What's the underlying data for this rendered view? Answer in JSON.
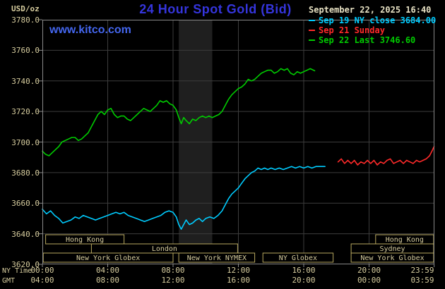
{
  "header": {
    "units_label": "USD/oz",
    "title": "24 Hour Spot Gold (Bid)",
    "datetime": "September 22, 2025 16:40",
    "watermark": "www.kitco.com"
  },
  "axes": {
    "ny_label": "NY Time",
    "gmt_label": "GMT"
  },
  "colors": {
    "background": "#000000",
    "title": "#3535dd",
    "watermark": "#4466ee",
    "datetime": "#e8e2c4",
    "axis_text": "#d6cc9e",
    "grid": "#3d3d3d",
    "border": "#8a8a8a",
    "band": "#1f1f1f",
    "session_border": "#b9a95f",
    "session_text": "#d6cc9e"
  },
  "legend": [
    {
      "id": "sep19",
      "label": "Sep 19 NY close 3684.00",
      "color": "#00ccff"
    },
    {
      "id": "sep21",
      "label": "Sep 21 Sunday",
      "color": "#ff2a2a"
    },
    {
      "id": "sep22",
      "label": "Sep 22 Last 3746.60",
      "color": "#00cc00"
    }
  ],
  "chart_data": {
    "type": "line",
    "title": "24 Hour Spot Gold (Bid)",
    "y_axis": {
      "unit": "USD/oz",
      "min": 3620,
      "max": 3780,
      "tick_step": 20,
      "tick_labels": [
        "3780.0",
        "3760.0",
        "3740.0",
        "3720.0",
        "3700.0",
        "3680.0",
        "3660.0",
        "3640.0",
        "3620.0"
      ]
    },
    "x_axis": {
      "range_hours": [
        0,
        24
      ],
      "ticks": [
        {
          "hour": 0,
          "ny": "00:00",
          "gmt": "04:00"
        },
        {
          "hour": 4,
          "ny": "04:00",
          "gmt": "08:00"
        },
        {
          "hour": 8,
          "ny": "08:00",
          "gmt": "12:00"
        },
        {
          "hour": 12,
          "ny": "12:00",
          "gmt": "16:00"
        },
        {
          "hour": 16,
          "ny": "16:00",
          "gmt": "20:00"
        },
        {
          "hour": 20,
          "ny": "20:00",
          "gmt": "00:00"
        },
        {
          "hour": 23.983,
          "ny": "23:59",
          "gmt": "03:59"
        }
      ]
    },
    "grid": true,
    "legend_position": "top-right",
    "shaded_bands_hours": [
      [
        8.35,
        10.4
      ]
    ],
    "series": [
      {
        "id": "sep19",
        "name": "Sep 19 NY close 3684.00",
        "color": "#00ccff",
        "points": [
          [
            0,
            3656
          ],
          [
            0.25,
            3653
          ],
          [
            0.5,
            3655
          ],
          [
            0.75,
            3652
          ],
          [
            1,
            3650
          ],
          [
            1.25,
            3647
          ],
          [
            1.5,
            3648
          ],
          [
            1.75,
            3649
          ],
          [
            2,
            3651
          ],
          [
            2.25,
            3650
          ],
          [
            2.5,
            3652
          ],
          [
            2.75,
            3651
          ],
          [
            3,
            3650
          ],
          [
            3.25,
            3649
          ],
          [
            3.5,
            3650
          ],
          [
            3.75,
            3651
          ],
          [
            4,
            3652
          ],
          [
            4.25,
            3653
          ],
          [
            4.5,
            3654
          ],
          [
            4.75,
            3653
          ],
          [
            5,
            3654
          ],
          [
            5.25,
            3652
          ],
          [
            5.5,
            3651
          ],
          [
            5.75,
            3650
          ],
          [
            6,
            3649
          ],
          [
            6.25,
            3648
          ],
          [
            6.5,
            3649
          ],
          [
            6.75,
            3650
          ],
          [
            7,
            3651
          ],
          [
            7.25,
            3652
          ],
          [
            7.5,
            3654
          ],
          [
            7.75,
            3655
          ],
          [
            8,
            3654
          ],
          [
            8.2,
            3651
          ],
          [
            8.35,
            3646
          ],
          [
            8.5,
            3643
          ],
          [
            8.65,
            3646
          ],
          [
            8.8,
            3649
          ],
          [
            9,
            3646
          ],
          [
            9.2,
            3647
          ],
          [
            9.4,
            3649
          ],
          [
            9.6,
            3650
          ],
          [
            9.8,
            3648
          ],
          [
            10,
            3650
          ],
          [
            10.25,
            3651
          ],
          [
            10.5,
            3650
          ],
          [
            10.75,
            3652
          ],
          [
            11,
            3655
          ],
          [
            11.2,
            3659
          ],
          [
            11.4,
            3663
          ],
          [
            11.6,
            3666
          ],
          [
            11.8,
            3668
          ],
          [
            12,
            3670
          ],
          [
            12.2,
            3673
          ],
          [
            12.4,
            3676
          ],
          [
            12.6,
            3678
          ],
          [
            12.8,
            3680
          ],
          [
            13,
            3681
          ],
          [
            13.2,
            3683
          ],
          [
            13.4,
            3682
          ],
          [
            13.6,
            3683
          ],
          [
            13.8,
            3682
          ],
          [
            14,
            3683
          ],
          [
            14.25,
            3682
          ],
          [
            14.5,
            3683
          ],
          [
            14.75,
            3682
          ],
          [
            15,
            3683
          ],
          [
            15.25,
            3684
          ],
          [
            15.5,
            3683
          ],
          [
            15.75,
            3684
          ],
          [
            16,
            3683
          ],
          [
            16.25,
            3684
          ],
          [
            16.5,
            3683
          ],
          [
            16.75,
            3684
          ],
          [
            17,
            3684
          ],
          [
            17.3,
            3684
          ]
        ]
      },
      {
        "id": "sep21",
        "name": "Sep 21 Sunday",
        "color": "#ff2a2a",
        "points": [
          [
            18.1,
            3687
          ],
          [
            18.3,
            3689
          ],
          [
            18.5,
            3686
          ],
          [
            18.7,
            3688
          ],
          [
            18.9,
            3686
          ],
          [
            19.1,
            3688
          ],
          [
            19.3,
            3685
          ],
          [
            19.5,
            3687
          ],
          [
            19.7,
            3686
          ],
          [
            19.9,
            3688
          ],
          [
            20.1,
            3686
          ],
          [
            20.3,
            3688
          ],
          [
            20.5,
            3685
          ],
          [
            20.7,
            3687
          ],
          [
            20.9,
            3686
          ],
          [
            21.1,
            3688
          ],
          [
            21.3,
            3689
          ],
          [
            21.5,
            3686
          ],
          [
            21.7,
            3687
          ],
          [
            21.9,
            3688
          ],
          [
            22.1,
            3686
          ],
          [
            22.3,
            3688
          ],
          [
            22.5,
            3687
          ],
          [
            22.7,
            3686
          ],
          [
            22.9,
            3688
          ],
          [
            23.1,
            3687
          ],
          [
            23.3,
            3688
          ],
          [
            23.5,
            3689
          ],
          [
            23.7,
            3691
          ],
          [
            23.85,
            3694
          ],
          [
            23.98,
            3697
          ]
        ]
      },
      {
        "id": "sep22",
        "name": "Sep 22 Last 3746.60",
        "color": "#00cc00",
        "points": [
          [
            0,
            3694
          ],
          [
            0.2,
            3692
          ],
          [
            0.4,
            3691
          ],
          [
            0.6,
            3693
          ],
          [
            0.8,
            3695
          ],
          [
            1,
            3697
          ],
          [
            1.2,
            3700
          ],
          [
            1.4,
            3701
          ],
          [
            1.6,
            3702
          ],
          [
            1.8,
            3703
          ],
          [
            2,
            3703
          ],
          [
            2.2,
            3701
          ],
          [
            2.4,
            3702
          ],
          [
            2.6,
            3704
          ],
          [
            2.8,
            3706
          ],
          [
            3,
            3710
          ],
          [
            3.2,
            3714
          ],
          [
            3.4,
            3718
          ],
          [
            3.6,
            3720
          ],
          [
            3.8,
            3718
          ],
          [
            4,
            3721
          ],
          [
            4.2,
            3722
          ],
          [
            4.4,
            3718
          ],
          [
            4.6,
            3716
          ],
          [
            4.8,
            3717
          ],
          [
            5,
            3717
          ],
          [
            5.2,
            3715
          ],
          [
            5.4,
            3714
          ],
          [
            5.6,
            3716
          ],
          [
            5.8,
            3718
          ],
          [
            6,
            3720
          ],
          [
            6.2,
            3722
          ],
          [
            6.4,
            3721
          ],
          [
            6.6,
            3720
          ],
          [
            6.8,
            3722
          ],
          [
            7,
            3724
          ],
          [
            7.2,
            3727
          ],
          [
            7.4,
            3726
          ],
          [
            7.6,
            3727
          ],
          [
            7.8,
            3725
          ],
          [
            8,
            3724
          ],
          [
            8.2,
            3721
          ],
          [
            8.35,
            3716
          ],
          [
            8.5,
            3712
          ],
          [
            8.65,
            3716
          ],
          [
            8.8,
            3714
          ],
          [
            9,
            3712
          ],
          [
            9.2,
            3715
          ],
          [
            9.4,
            3714
          ],
          [
            9.6,
            3716
          ],
          [
            9.8,
            3717
          ],
          [
            10,
            3716
          ],
          [
            10.2,
            3717
          ],
          [
            10.4,
            3716
          ],
          [
            10.6,
            3717
          ],
          [
            10.8,
            3718
          ],
          [
            11,
            3720
          ],
          [
            11.2,
            3724
          ],
          [
            11.4,
            3728
          ],
          [
            11.6,
            3731
          ],
          [
            11.8,
            3733
          ],
          [
            12,
            3735
          ],
          [
            12.2,
            3736
          ],
          [
            12.4,
            3738
          ],
          [
            12.6,
            3741
          ],
          [
            12.8,
            3740
          ],
          [
            13,
            3741
          ],
          [
            13.2,
            3743
          ],
          [
            13.4,
            3745
          ],
          [
            13.6,
            3746
          ],
          [
            13.8,
            3747
          ],
          [
            14,
            3747
          ],
          [
            14.2,
            3745
          ],
          [
            14.4,
            3746
          ],
          [
            14.6,
            3748
          ],
          [
            14.8,
            3747
          ],
          [
            15,
            3748
          ],
          [
            15.2,
            3745
          ],
          [
            15.4,
            3744
          ],
          [
            15.6,
            3746
          ],
          [
            15.8,
            3745
          ],
          [
            16,
            3746
          ],
          [
            16.2,
            3747
          ],
          [
            16.4,
            3748
          ],
          [
            16.67,
            3746.6
          ]
        ]
      }
    ],
    "sessions": [
      {
        "row": 0,
        "label": "Hong Kong",
        "start": 0.2,
        "end": 5.0
      },
      {
        "row": 0,
        "label": "Hong Kong",
        "start": 20.4,
        "end": 23.95
      },
      {
        "row": 1,
        "label": "London",
        "start": 3.0,
        "end": 11.95
      },
      {
        "row": 1,
        "label": "Sydney",
        "start": 18.9,
        "end": 23.95
      },
      {
        "row": 2,
        "label": "New York Globex",
        "start": 0.05,
        "end": 8.0
      },
      {
        "row": 2,
        "label": "New York NYMEX",
        "start": 8.35,
        "end": 13.0
      },
      {
        "row": 2,
        "label": "NY Globex",
        "start": 13.5,
        "end": 17.8
      },
      {
        "row": 2,
        "label": "New York Globex",
        "start": 18.9,
        "end": 23.95
      }
    ]
  }
}
